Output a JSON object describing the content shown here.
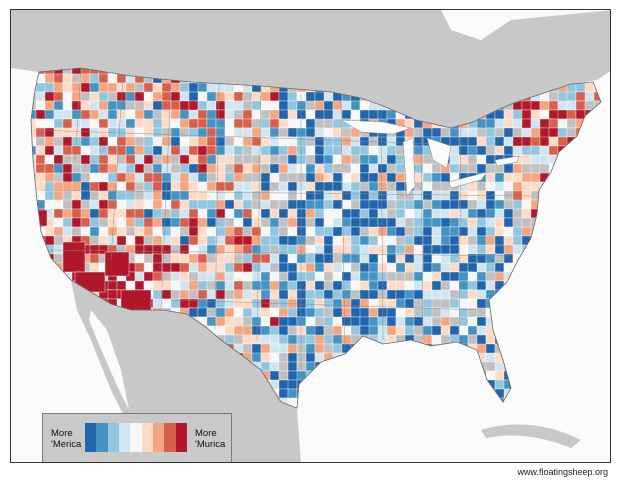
{
  "map": {
    "subject": "US counties colored by use of 'Merica vs 'Murica",
    "palette": [
      "#2166ac",
      "#4393c3",
      "#92c5de",
      "#d1e5f0",
      "#f7f7f7",
      "#fddbc7",
      "#f4a582",
      "#d6604d",
      "#b2182b"
    ],
    "land_color": "#c8c8c8",
    "water_color": "#fbfbfb",
    "no_data_color": "#c0c0c0"
  },
  "legend": {
    "left_line1": "More",
    "left_line2": "'Merica",
    "right_line1": "More",
    "right_line2": "'Murica"
  },
  "credit": "www.floatingsheep.org"
}
